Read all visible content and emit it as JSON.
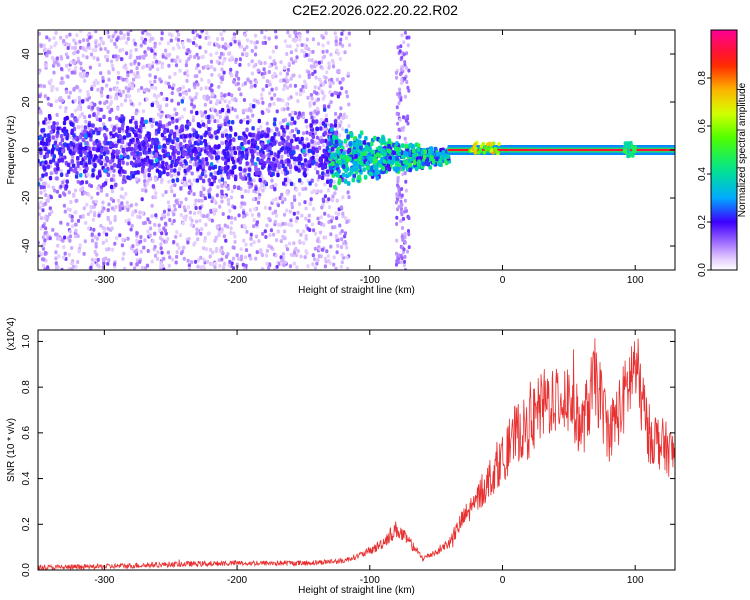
{
  "title": "C2E2.2026.022.20.22.R02",
  "chart_data": [
    {
      "type": "heatmap",
      "xlabel": "Height of straight line (km)",
      "ylabel": "Frequency (Hz)",
      "xlim": [
        -350,
        130
      ],
      "ylim": [
        -50,
        50
      ],
      "xticks": [
        -300,
        -200,
        -100,
        0,
        100
      ],
      "yticks": [
        -40,
        -20,
        0,
        20,
        40
      ],
      "colorbar": {
        "label": "Normalized spectral amplitude",
        "range": [
          0.0,
          1.0
        ],
        "ticks": [
          "0.0",
          "0.2",
          "0.4",
          "0.6",
          "0.8"
        ],
        "colors": [
          "#ffffff",
          "#9966ff",
          "#2200ff",
          "#00ccff",
          "#00ff66",
          "#ccff00",
          "#ffaa00",
          "#ff0000",
          "#ff0099"
        ]
      },
      "features": {
        "noise_region_x": [
          -350,
          -125
        ],
        "noise_region_amplitude": 0.1,
        "transition_region_x": [
          -130,
          -40
        ],
        "stable_line_x": [
          -40,
          130
        ],
        "stable_line_frequency": 0,
        "stable_line_amplitude": 0.95,
        "vertical_streak_x": [
          -80,
          -70
        ]
      }
    },
    {
      "type": "line",
      "xlabel": "Height of straight line (km)",
      "ylabel": "SNR (10 * v/v)",
      "yexponent": "(x10^4)",
      "xlim": [
        -350,
        130
      ],
      "ylim": [
        0,
        1.05
      ],
      "xticks": [
        -300,
        -200,
        -100,
        0,
        100
      ],
      "yticks": [
        "0.0",
        "0.2",
        "0.4",
        "0.6",
        "0.8",
        "1.0"
      ],
      "color": "#e83030",
      "series": [
        {
          "x": [
            -350,
            -300,
            -250,
            -200,
            -150,
            -120,
            -100,
            -90,
            -80,
            -70,
            -60,
            -50,
            -40,
            -30,
            -20,
            -10,
            0,
            10,
            20,
            30,
            40,
            50,
            60,
            70,
            80,
            90,
            100,
            110,
            120,
            130
          ],
          "y": [
            0.01,
            0.015,
            0.025,
            0.03,
            0.03,
            0.04,
            0.08,
            0.12,
            0.18,
            0.12,
            0.05,
            0.08,
            0.12,
            0.22,
            0.3,
            0.4,
            0.48,
            0.6,
            0.62,
            0.72,
            0.76,
            0.75,
            0.62,
            0.84,
            0.6,
            0.72,
            0.9,
            0.6,
            0.55,
            0.5
          ]
        }
      ]
    }
  ]
}
